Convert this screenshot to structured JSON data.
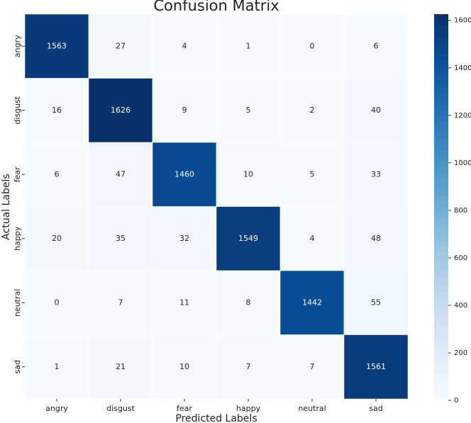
{
  "chart_data": {
    "type": "heatmap",
    "title": "Confusion Matrix",
    "x_label": "Predicted Labels",
    "y_label": "Actual Labels",
    "x_categories": [
      "angry",
      "disgust",
      "fear",
      "happy",
      "neutral",
      "sad"
    ],
    "y_categories": [
      "angry",
      "disgust",
      "fear",
      "happy",
      "neutral",
      "sad"
    ],
    "values": [
      [
        1563,
        27,
        4,
        1,
        0,
        6
      ],
      [
        16,
        1626,
        9,
        5,
        2,
        40
      ],
      [
        6,
        47,
        1460,
        10,
        5,
        33
      ],
      [
        20,
        35,
        32,
        1549,
        4,
        48
      ],
      [
        0,
        7,
        11,
        8,
        1442,
        55
      ],
      [
        1,
        21,
        10,
        7,
        7,
        1561
      ]
    ],
    "clim": [
      0,
      1626
    ],
    "colorbar_ticks": [
      0,
      200,
      400,
      600,
      800,
      1000,
      1200,
      1400,
      1600
    ],
    "colormap": [
      "#f7fbff",
      "#deebf7",
      "#c6dbef",
      "#9ecae1",
      "#6baed6",
      "#4292c6",
      "#2171b5",
      "#08519c",
      "#08306b"
    ]
  }
}
